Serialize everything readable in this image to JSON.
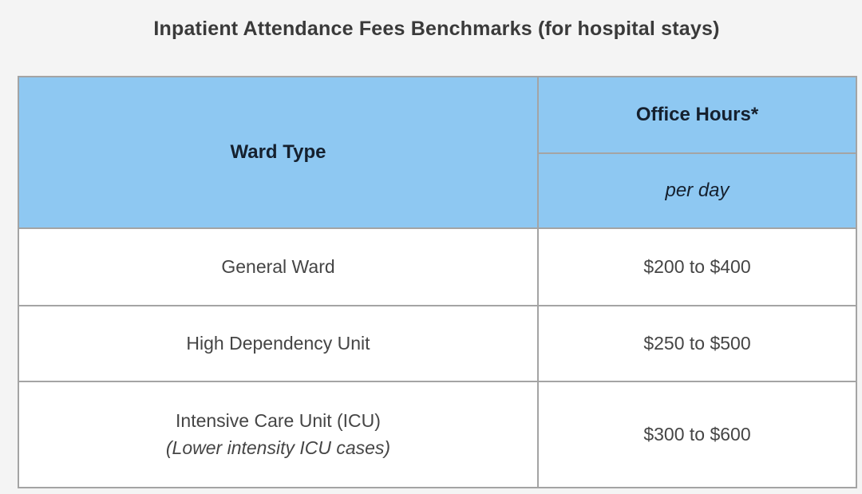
{
  "title": "Inpatient Attendance Fees Benchmarks (for hospital stays)",
  "table": {
    "header": {
      "ward_type": "Ward Type",
      "office_hours": "Office Hours*",
      "per_day": "per day"
    },
    "rows": [
      {
        "ward": "General Ward",
        "note": "",
        "fee": "$200 to $400"
      },
      {
        "ward": "High Dependency Unit",
        "note": "",
        "fee": "$250 to $500"
      },
      {
        "ward": "Intensive Care Unit (ICU)",
        "note": "(Lower intensity ICU cases)",
        "fee": "$300 to $600"
      }
    ],
    "colors": {
      "page_bg": "#f4f4f4",
      "header_bg": "#8ec8f2",
      "header_text": "#15202e",
      "cell_text": "#454545",
      "title_text": "#3a3a3a",
      "border": "#a4a4a4",
      "row_bg": "#ffffff"
    }
  }
}
